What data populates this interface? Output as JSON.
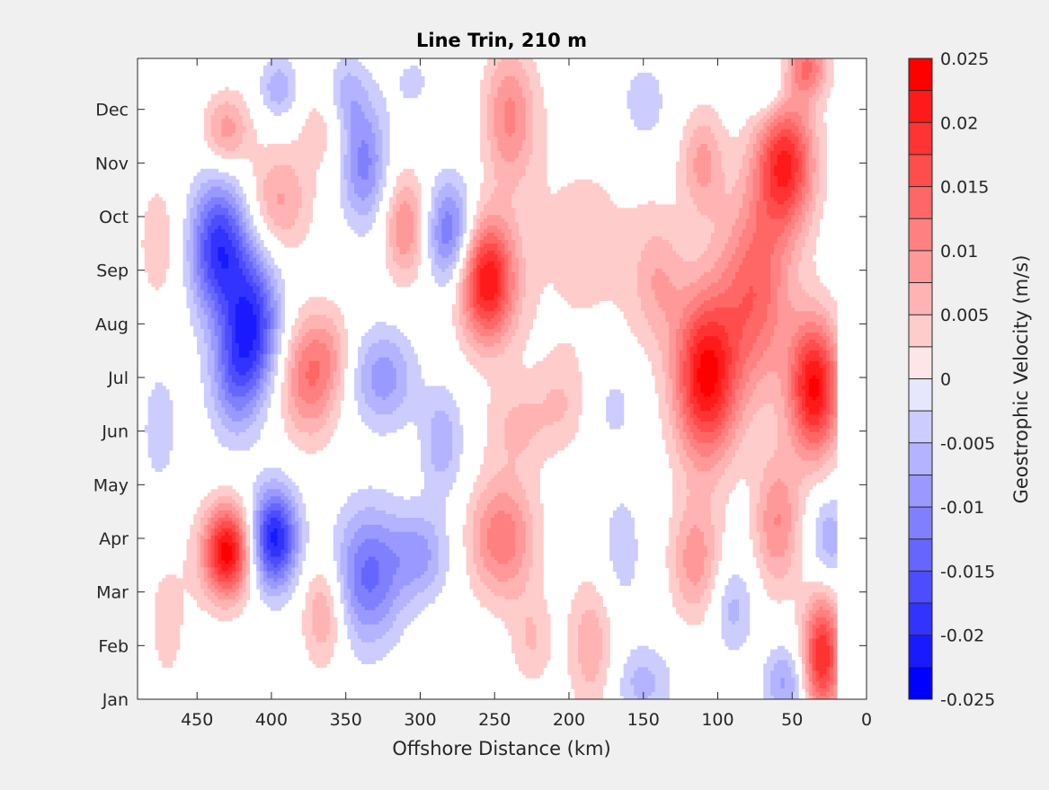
{
  "chart_data": {
    "type": "heatmap",
    "title": "Line Trin, 210 m",
    "xlabel": "Offshore Distance (km)",
    "ylabel": "",
    "xlim": [
      490,
      0
    ],
    "x_reversed": true,
    "x_ticks": [
      450,
      400,
      350,
      300,
      250,
      200,
      150,
      100,
      50,
      0
    ],
    "x_tick_labels": [
      "450",
      "400",
      "350",
      "300",
      "250",
      "200",
      "150",
      "100",
      "50",
      "0"
    ],
    "y_categories": [
      "Jan",
      "Feb",
      "Mar",
      "Apr",
      "May",
      "Jun",
      "Jul",
      "Aug",
      "Sep",
      "Oct",
      "Nov",
      "Dec"
    ],
    "data_extent_km": [
      490,
      20
    ],
    "colorbar": {
      "label": "Geostrophic Velocity (m/s)",
      "clim": [
        -0.025,
        0.025
      ],
      "levels": [
        -0.025,
        -0.0225,
        -0.02,
        -0.0175,
        -0.015,
        -0.0125,
        -0.01,
        -0.0075,
        -0.005,
        -0.0025,
        0,
        0.0025,
        0.005,
        0.0075,
        0.01,
        0.0125,
        0.015,
        0.0175,
        0.02,
        0.0225,
        0.025
      ],
      "tick_values": [
        -0.025,
        -0.02,
        -0.015,
        -0.01,
        -0.005,
        0,
        0.005,
        0.01,
        0.015,
        0.02,
        0.025
      ],
      "tick_labels": [
        "-0.025",
        "-0.02",
        "-0.015",
        "-0.01",
        "-0.005",
        "0",
        "0.005",
        "0.01",
        "0.015",
        "0.02",
        "0.025"
      ],
      "neg_color": "#0000ff",
      "zero_color": "#ffffff",
      "pos_color": "#ff0000"
    },
    "features": [
      {
        "x": 435,
        "t": 8.4,
        "sx": 14,
        "st": 0.9,
        "v": -0.019
      },
      {
        "x": 412,
        "t": 7.0,
        "sx": 13,
        "st": 0.9,
        "v": -0.017
      },
      {
        "x": 425,
        "t": 6.0,
        "sx": 12,
        "st": 0.8,
        "v": -0.01
      },
      {
        "x": 430,
        "t": 2.75,
        "sx": 11,
        "st": 0.6,
        "v": 0.024
      },
      {
        "x": 398,
        "t": 3.0,
        "sx": 11,
        "st": 0.65,
        "v": -0.021
      },
      {
        "x": 375,
        "t": 6.0,
        "sx": 14,
        "st": 0.8,
        "v": 0.012
      },
      {
        "x": 395,
        "t": 9.3,
        "sx": 15,
        "st": 0.7,
        "v": 0.008
      },
      {
        "x": 430,
        "t": 10.6,
        "sx": 11,
        "st": 0.5,
        "v": 0.009
      },
      {
        "x": 395,
        "t": 11.4,
        "sx": 9,
        "st": 0.4,
        "v": -0.007
      },
      {
        "x": 365,
        "t": 10.7,
        "sx": 12,
        "st": 0.6,
        "v": 0.004
      },
      {
        "x": 338,
        "t": 10.0,
        "sx": 11,
        "st": 0.8,
        "v": -0.011
      },
      {
        "x": 350,
        "t": 11.3,
        "sx": 10,
        "st": 0.5,
        "v": -0.006
      },
      {
        "x": 310,
        "t": 8.8,
        "sx": 10,
        "st": 0.7,
        "v": 0.01
      },
      {
        "x": 280,
        "t": 8.7,
        "sx": 11,
        "st": 0.7,
        "v": -0.013
      },
      {
        "x": 325,
        "t": 6.0,
        "sx": 15,
        "st": 0.65,
        "v": -0.009
      },
      {
        "x": 335,
        "t": 2.3,
        "sx": 16,
        "st": 0.9,
        "v": -0.013
      },
      {
        "x": 300,
        "t": 2.7,
        "sx": 14,
        "st": 0.6,
        "v": -0.008
      },
      {
        "x": 365,
        "t": 1.6,
        "sx": 10,
        "st": 0.7,
        "v": 0.008
      },
      {
        "x": 255,
        "t": 7.8,
        "sx": 13,
        "st": 0.8,
        "v": 0.022
      },
      {
        "x": 240,
        "t": 10.9,
        "sx": 12,
        "st": 0.9,
        "v": 0.01
      },
      {
        "x": 245,
        "t": 3.0,
        "sx": 16,
        "st": 0.8,
        "v": 0.012
      },
      {
        "x": 235,
        "t": 5.1,
        "sx": 15,
        "st": 0.6,
        "v": 0.005
      },
      {
        "x": 185,
        "t": 1.0,
        "sx": 11,
        "st": 0.9,
        "v": 0.007
      },
      {
        "x": 225,
        "t": 1.1,
        "sx": 10,
        "st": 0.6,
        "v": 0.005
      },
      {
        "x": 150,
        "t": 11.1,
        "sx": 12,
        "st": 0.6,
        "v": -0.005
      },
      {
        "x": 150,
        "t": 0.3,
        "sx": 14,
        "st": 0.5,
        "v": -0.006
      },
      {
        "x": 165,
        "t": 2.8,
        "sx": 11,
        "st": 0.9,
        "v": -0.004
      },
      {
        "x": 115,
        "t": 2.6,
        "sx": 12,
        "st": 0.8,
        "v": 0.009
      },
      {
        "x": 90,
        "t": 1.7,
        "sx": 10,
        "st": 0.6,
        "v": -0.006
      },
      {
        "x": 108,
        "t": 6.0,
        "sx": 15,
        "st": 1.1,
        "v": 0.023
      },
      {
        "x": 110,
        "t": 10.0,
        "sx": 10,
        "st": 0.7,
        "v": 0.008
      },
      {
        "x": 75,
        "t": 7.6,
        "sx": 17,
        "st": 1.3,
        "v": 0.014
      },
      {
        "x": 55,
        "t": 10.0,
        "sx": 14,
        "st": 0.9,
        "v": 0.02
      },
      {
        "x": 35,
        "t": 5.8,
        "sx": 12,
        "st": 0.9,
        "v": 0.023
      },
      {
        "x": 60,
        "t": 3.3,
        "sx": 11,
        "st": 0.9,
        "v": 0.01
      },
      {
        "x": 30,
        "t": 0.8,
        "sx": 9,
        "st": 0.8,
        "v": 0.02
      },
      {
        "x": 55,
        "t": 0.3,
        "sx": 10,
        "st": 0.5,
        "v": -0.008
      },
      {
        "x": 25,
        "t": 3.0,
        "sx": 9,
        "st": 0.6,
        "v": -0.007
      },
      {
        "x": 40,
        "t": 11.8,
        "sx": 10,
        "st": 0.4,
        "v": 0.012
      },
      {
        "x": 65,
        "t": 11.4,
        "sx": 10,
        "st": 0.5,
        "v": -0.006
      },
      {
        "x": 475,
        "t": 5.0,
        "sx": 10,
        "st": 1.0,
        "v": -0.004
      },
      {
        "x": 475,
        "t": 8.5,
        "sx": 12,
        "st": 1.0,
        "v": 0.004
      },
      {
        "x": 470,
        "t": 1.5,
        "sx": 15,
        "st": 1.5,
        "v": 0.003
      },
      {
        "x": 190,
        "t": 8.5,
        "sx": 40,
        "st": 2.0,
        "v": 0.003
      },
      {
        "x": 205,
        "t": 5.5,
        "sx": 12,
        "st": 0.6,
        "v": 0.004
      },
      {
        "x": 285,
        "t": 4.8,
        "sx": 10,
        "st": 0.7,
        "v": -0.007
      },
      {
        "x": 170,
        "t": 5.5,
        "sx": 12,
        "st": 0.6,
        "v": -0.004
      },
      {
        "x": 140,
        "t": 7.8,
        "sx": 12,
        "st": 0.8,
        "v": 0.006
      },
      {
        "x": 305,
        "t": 11.5,
        "sx": 12,
        "st": 0.5,
        "v": -0.003
      },
      {
        "x": 360,
        "t": 6.5,
        "sx": 10,
        "st": 0.6,
        "v": 0.004
      }
    ]
  }
}
